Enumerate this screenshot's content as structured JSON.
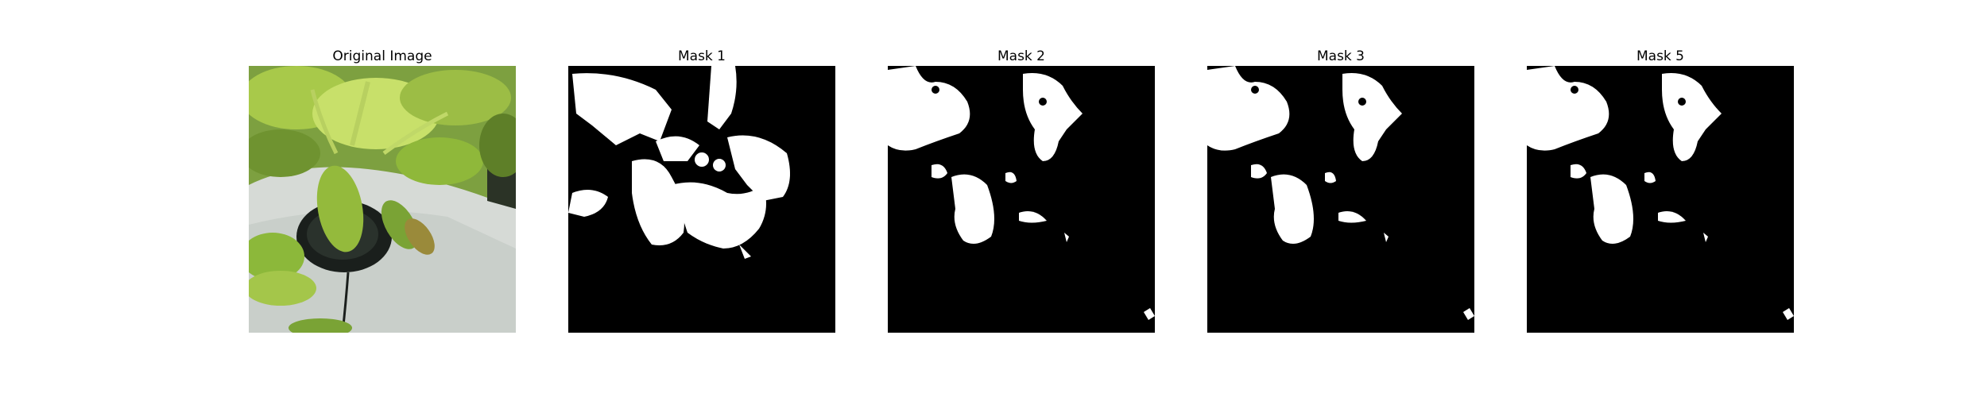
{
  "figure": {
    "panels": [
      {
        "title": "Original Image",
        "kind": "photo"
      },
      {
        "title": "Mask 1",
        "kind": "mask"
      },
      {
        "title": "Mask 2",
        "kind": "mask"
      },
      {
        "title": "Mask 3",
        "kind": "mask"
      },
      {
        "title": "Mask 5",
        "kind": "mask"
      }
    ]
  },
  "colors": {
    "background": "#ffffff",
    "mask_background": "#000000",
    "mask_foreground": "#ffffff",
    "leaf_green": "#8fb83a",
    "leaf_light": "#c8e06a",
    "pot_white": "#d6dad6",
    "pot_dark": "#1a1f1c"
  }
}
